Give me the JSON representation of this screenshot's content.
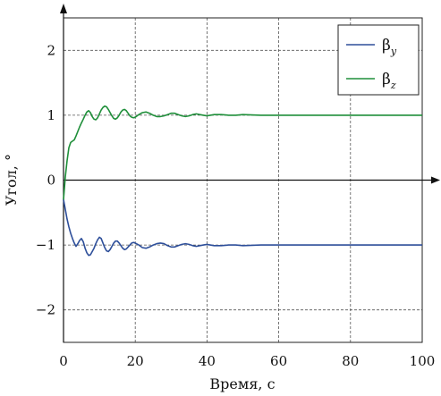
{
  "chart_data": {
    "type": "line",
    "title": "",
    "xlabel": "Время, с",
    "ylabel": "Угол, °",
    "xlim": [
      0,
      100
    ],
    "ylim": [
      -2.5,
      2.5
    ],
    "xticks": [
      0,
      20,
      40,
      60,
      80,
      100
    ],
    "yticks": [
      2,
      1,
      0,
      -1,
      -2
    ],
    "xtick_labels": [
      "0",
      "20",
      "40",
      "60",
      "80",
      "100"
    ],
    "ytick_labels": [
      "2",
      "1",
      "0",
      "−1",
      "−2"
    ],
    "grid": true,
    "legend_position": "top-right",
    "series": [
      {
        "name": "β_y",
        "color": "#2e4f9a",
        "x": [
          0,
          0.5,
          1,
          1.5,
          2,
          2.5,
          3,
          3.5,
          4,
          4.5,
          5,
          5.5,
          6,
          6.5,
          7,
          7.5,
          8,
          8.5,
          9,
          9.5,
          10,
          10.5,
          11,
          11.5,
          12,
          12.5,
          13,
          13.5,
          14,
          14.5,
          15,
          15.5,
          16,
          16.5,
          17,
          17.5,
          18,
          18.5,
          19,
          19.5,
          20,
          21,
          22,
          23,
          24,
          25,
          26,
          27,
          28,
          29,
          30,
          31,
          32,
          33,
          34,
          35,
          36,
          37,
          38,
          39,
          40,
          42,
          44,
          46,
          48,
          50,
          55,
          60,
          70,
          80,
          90,
          100
        ],
        "y": [
          -0.3,
          -0.45,
          -0.6,
          -0.72,
          -0.82,
          -0.9,
          -0.97,
          -1.02,
          -0.98,
          -0.93,
          -0.9,
          -0.95,
          -1.05,
          -1.12,
          -1.16,
          -1.15,
          -1.1,
          -1.05,
          -0.98,
          -0.92,
          -0.88,
          -0.9,
          -0.97,
          -1.04,
          -1.09,
          -1.1,
          -1.07,
          -1.02,
          -0.97,
          -0.94,
          -0.94,
          -0.97,
          -1.01,
          -1.05,
          -1.07,
          -1.06,
          -1.03,
          -1.0,
          -0.97,
          -0.96,
          -0.97,
          -1.0,
          -1.04,
          -1.05,
          -1.03,
          -1.0,
          -0.98,
          -0.97,
          -0.98,
          -1.01,
          -1.03,
          -1.03,
          -1.01,
          -0.99,
          -0.98,
          -0.99,
          -1.01,
          -1.02,
          -1.01,
          -1.0,
          -0.99,
          -1.01,
          -1.01,
          -1.0,
          -1.0,
          -1.01,
          -1.0,
          -1.0,
          -1.0,
          -1.0,
          -1.0,
          -1.0
        ]
      },
      {
        "name": "β_z",
        "color": "#1f8f3a",
        "x": [
          0,
          0.5,
          1,
          1.5,
          2,
          2.5,
          3,
          3.5,
          4,
          4.5,
          5,
          5.5,
          6,
          6.5,
          7,
          7.5,
          8,
          8.5,
          9,
          9.5,
          10,
          10.5,
          11,
          11.5,
          12,
          12.5,
          13,
          13.5,
          14,
          14.5,
          15,
          15.5,
          16,
          16.5,
          17,
          17.5,
          18,
          18.5,
          19,
          19.5,
          20,
          21,
          22,
          23,
          24,
          25,
          26,
          27,
          28,
          29,
          30,
          31,
          32,
          33,
          34,
          35,
          36,
          37,
          38,
          39,
          40,
          42,
          44,
          46,
          48,
          50,
          55,
          60,
          70,
          80,
          90,
          100
        ],
        "y": [
          -0.3,
          0.05,
          0.3,
          0.5,
          0.58,
          0.6,
          0.62,
          0.68,
          0.75,
          0.82,
          0.88,
          0.94,
          1.0,
          1.05,
          1.07,
          1.04,
          0.98,
          0.94,
          0.93,
          0.96,
          1.02,
          1.08,
          1.12,
          1.14,
          1.13,
          1.09,
          1.04,
          0.99,
          0.95,
          0.94,
          0.96,
          1.0,
          1.05,
          1.08,
          1.09,
          1.07,
          1.03,
          0.99,
          0.97,
          0.96,
          0.97,
          1.01,
          1.04,
          1.05,
          1.03,
          1.0,
          0.98,
          0.98,
          0.99,
          1.01,
          1.03,
          1.03,
          1.01,
          0.99,
          0.98,
          0.99,
          1.01,
          1.02,
          1.01,
          1.0,
          0.99,
          1.01,
          1.01,
          1.0,
          1.0,
          1.01,
          1.0,
          1.0,
          1.0,
          1.0,
          1.0,
          1.0
        ]
      }
    ],
    "legend": [
      {
        "sym": "β",
        "sub": "y",
        "color": "#2e4f9a"
      },
      {
        "sym": "β",
        "sub": "z",
        "color": "#1f8f3a"
      }
    ]
  }
}
